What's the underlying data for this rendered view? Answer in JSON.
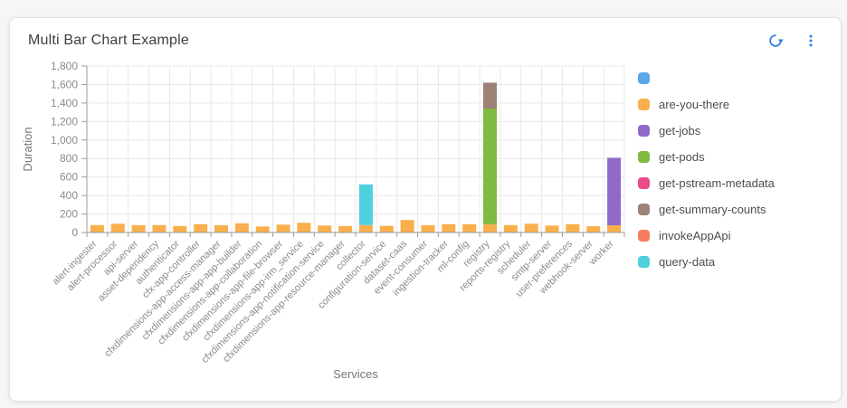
{
  "card": {
    "title": "Multi Bar Chart Example"
  },
  "toolbar": {
    "icon_color": "#2a7cde"
  },
  "chart_data": {
    "type": "bar",
    "stacked": true,
    "title": "Multi Bar Chart Example",
    "xlabel": "Services",
    "ylabel": "Duration",
    "ylim": [
      0,
      1800
    ],
    "ytick_step": 200,
    "grid": true,
    "legend_position": "right",
    "categories": [
      "alert-ingester",
      "alert-processor",
      "api-server",
      "asset-dependency",
      "authenticator",
      "cfx-app-controller",
      "cfxdimensions-app-access-manager",
      "cfxdimensions-app-app-builder",
      "cfxdimensions-app-collaboration",
      "cfxdimensions-app-file-browser",
      "cfxdimensions-app-irm_service",
      "cfxdimensions-app-notification-service",
      "cfxdimensions-app-resource-manager",
      "collector",
      "configuration-service",
      "dataset-caas",
      "event-consumer",
      "ingestion-tracker",
      "ml-config",
      "registry",
      "reports-registry",
      "scheduler",
      "smtp-server",
      "user-preferences",
      "webhook-server",
      "worker"
    ],
    "series": [
      {
        "name": "",
        "color": "#5ba8e8",
        "values": [
          0,
          0,
          0,
          0,
          0,
          0,
          0,
          0,
          0,
          0,
          0,
          0,
          0,
          0,
          0,
          0,
          0,
          0,
          0,
          0,
          0,
          0,
          0,
          0,
          0,
          0
        ]
      },
      {
        "name": "are-you-there",
        "color": "#f9af4b",
        "values": [
          80,
          95,
          80,
          80,
          70,
          90,
          78,
          100,
          65,
          85,
          105,
          75,
          70,
          80,
          72,
          135,
          78,
          90,
          90,
          90,
          80,
          95,
          75,
          90,
          68,
          78
        ]
      },
      {
        "name": "get-jobs",
        "color": "#8f6bc7",
        "values": [
          0,
          0,
          0,
          0,
          0,
          0,
          0,
          0,
          0,
          0,
          0,
          0,
          0,
          0,
          0,
          0,
          0,
          0,
          0,
          0,
          0,
          0,
          0,
          0,
          0,
          730
        ]
      },
      {
        "name": "get-pods",
        "color": "#7fba41",
        "values": [
          0,
          0,
          0,
          0,
          0,
          0,
          0,
          0,
          0,
          0,
          0,
          0,
          0,
          0,
          0,
          0,
          0,
          0,
          0,
          1250,
          0,
          0,
          0,
          0,
          0,
          0
        ]
      },
      {
        "name": "get-pstream-metadata",
        "color": "#ea4c89",
        "values": [
          0,
          0,
          0,
          0,
          0,
          0,
          0,
          0,
          0,
          0,
          0,
          0,
          0,
          0,
          0,
          0,
          0,
          0,
          0,
          0,
          0,
          0,
          0,
          0,
          0,
          0
        ]
      },
      {
        "name": "get-summary-counts",
        "color": "#9d8276",
        "values": [
          0,
          0,
          0,
          0,
          0,
          0,
          0,
          0,
          0,
          0,
          0,
          0,
          0,
          0,
          0,
          0,
          0,
          0,
          0,
          280,
          0,
          0,
          0,
          0,
          0,
          0
        ]
      },
      {
        "name": "invokeAppApi",
        "color": "#f87d5d",
        "values": [
          0,
          0,
          0,
          0,
          0,
          0,
          0,
          0,
          0,
          0,
          0,
          0,
          0,
          0,
          0,
          0,
          0,
          0,
          0,
          0,
          0,
          0,
          0,
          0,
          0,
          0
        ]
      },
      {
        "name": "query-data",
        "color": "#4ed0df",
        "values": [
          0,
          0,
          0,
          0,
          0,
          0,
          0,
          0,
          0,
          0,
          0,
          0,
          0,
          440,
          0,
          0,
          0,
          0,
          0,
          0,
          0,
          0,
          0,
          0,
          0,
          0
        ]
      }
    ]
  }
}
